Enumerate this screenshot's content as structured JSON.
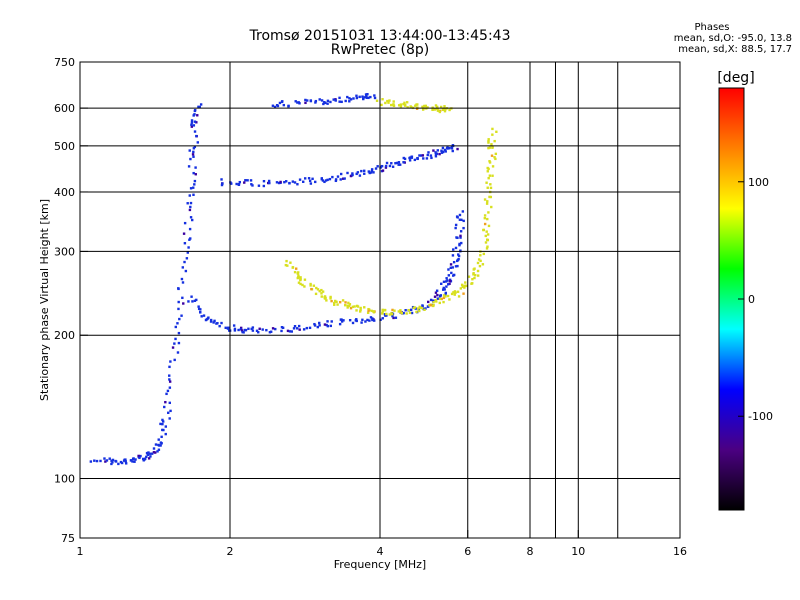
{
  "chart_data": {
    "type": "scatter",
    "title": "Tromsø 20151031 13:44:00-13:45:43",
    "subtitle": "RwPretec (8p)",
    "xlabel": "Frequency [MHz]",
    "ylabel": "Stationary phase Virtual Height [km]",
    "x_scale": "log",
    "y_scale": "log",
    "xlim": [
      1,
      16
    ],
    "ylim": [
      75,
      750
    ],
    "x_ticks": [
      1,
      2,
      4,
      6,
      8,
      10,
      16
    ],
    "x_tick_labels": [
      "1",
      "2",
      "4",
      "6",
      "8",
      "10",
      "16"
    ],
    "y_ticks": [
      75,
      100,
      200,
      300,
      400,
      500,
      600,
      750
    ],
    "y_tick_labels": [
      "75",
      "100",
      "200",
      "300",
      "400",
      "500",
      "600",
      "750"
    ],
    "x_gridlines": [
      2,
      4,
      6,
      8,
      10
    ],
    "y_gridlines": [
      100,
      200,
      300,
      400,
      500,
      600
    ],
    "legend": {
      "title": "Phases",
      "lines": [
        "mean, sd,O: -95.0, 13.8",
        "mean, sd,X:  88.5, 17.7"
      ]
    },
    "colorbar": {
      "label": "[deg]",
      "range": [
        -180,
        180
      ],
      "ticks": [
        100,
        0,
        -100
      ],
      "tick_labels": [
        "100",
        "0",
        "-100"
      ],
      "colormap": [
        "#000000",
        "#4b0082",
        "#0000ff",
        "#00ffff",
        "#00ff00",
        "#ffff00",
        "#ff8000",
        "#ff0000"
      ]
    },
    "traces": [
      {
        "mode": "O",
        "phase_deg": -95,
        "color": "#1530e0",
        "points": [
          [
            1.07,
            110
          ],
          [
            1.2,
            108
          ],
          [
            1.3,
            110
          ],
          [
            1.38,
            112
          ],
          [
            1.45,
            120
          ],
          [
            1.5,
            140
          ],
          [
            1.55,
            190
          ],
          [
            1.6,
            260
          ],
          [
            1.65,
            350
          ],
          [
            1.68,
            450
          ],
          [
            1.7,
            550
          ],
          [
            1.72,
            620
          ]
        ]
      },
      {
        "mode": "O",
        "phase_deg": -95,
        "color": "#1530e0",
        "points": [
          [
            1.66,
            240
          ],
          [
            1.8,
            215
          ],
          [
            2.0,
            207
          ],
          [
            2.2,
            205
          ],
          [
            2.6,
            206
          ],
          [
            3.0,
            210
          ],
          [
            3.5,
            214
          ],
          [
            4.0,
            218
          ],
          [
            4.5,
            222
          ],
          [
            5.0,
            232
          ],
          [
            5.3,
            245
          ],
          [
            5.5,
            262
          ],
          [
            5.65,
            285
          ],
          [
            5.75,
            320
          ],
          [
            5.82,
            370
          ]
        ]
      },
      {
        "mode": "O",
        "phase_deg": -95,
        "color": "#1530e0",
        "points": [
          [
            1.9,
            420
          ],
          [
            2.2,
            418
          ],
          [
            2.6,
            418
          ],
          [
            3.0,
            424
          ],
          [
            3.4,
            432
          ],
          [
            3.8,
            442
          ],
          [
            4.2,
            455
          ],
          [
            4.6,
            470
          ],
          [
            5.0,
            478
          ],
          [
            5.4,
            488
          ],
          [
            5.7,
            498
          ]
        ]
      },
      {
        "mode": "O",
        "phase_deg": -95,
        "color": "#1530e0",
        "points": [
          [
            2.4,
            612
          ],
          [
            2.8,
            615
          ],
          [
            3.2,
            622
          ],
          [
            3.6,
            632
          ],
          [
            3.9,
            640
          ]
        ]
      },
      {
        "mode": "X",
        "phase_deg": 88.5,
        "color": "#d8e020",
        "points": [
          [
            2.6,
            285
          ],
          [
            2.75,
            262
          ],
          [
            2.95,
            248
          ],
          [
            3.2,
            237
          ],
          [
            3.5,
            230
          ],
          [
            3.8,
            226
          ],
          [
            4.2,
            224
          ],
          [
            4.7,
            226
          ],
          [
            5.2,
            234
          ],
          [
            5.7,
            245
          ],
          [
            6.1,
            260
          ],
          [
            6.4,
            290
          ],
          [
            6.55,
            340
          ],
          [
            6.65,
            410
          ],
          [
            6.7,
            480
          ],
          [
            6.72,
            540
          ]
        ]
      },
      {
        "mode": "X",
        "phase_deg": 88.5,
        "color": "#d8e020",
        "points": [
          [
            4.0,
            620
          ],
          [
            4.4,
            612
          ],
          [
            4.8,
            605
          ],
          [
            5.2,
            600
          ],
          [
            5.5,
            596
          ]
        ]
      }
    ]
  }
}
